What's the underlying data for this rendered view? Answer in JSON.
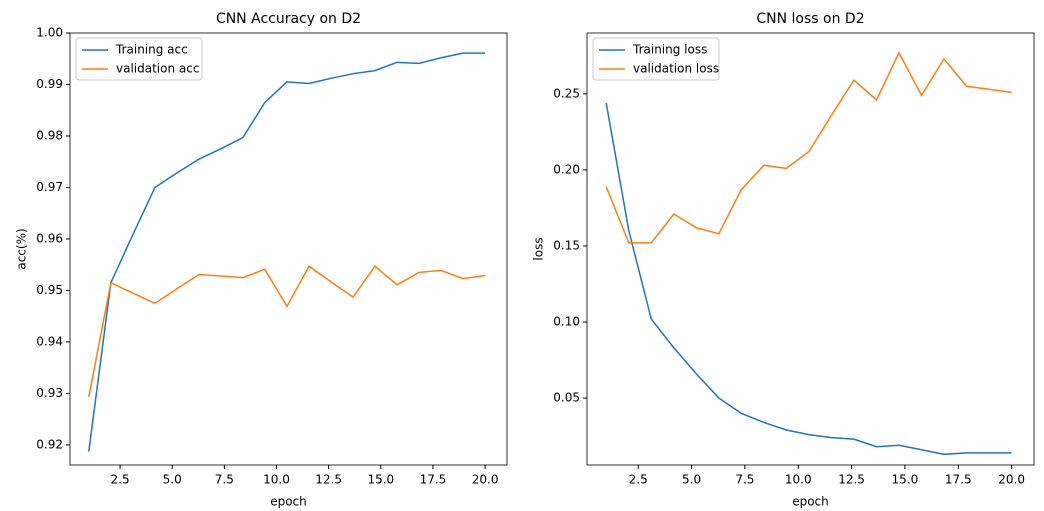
{
  "chart_data": [
    {
      "type": "line",
      "title": "CNN Accuracy on D2",
      "x_label": "epoch",
      "y_label": "acc(%)",
      "x": [
        1,
        2.06,
        3.11,
        4.17,
        5.22,
        6.28,
        7.33,
        8.39,
        9.44,
        10.5,
        11.56,
        12.61,
        13.67,
        14.72,
        15.78,
        16.83,
        17.89,
        18.94,
        20
      ],
      "series": [
        {
          "name": "Training acc",
          "color": "#1f77b4",
          "values": [
            0.9187,
            0.9515,
            0.9608,
            0.97,
            0.9728,
            0.9755,
            0.9775,
            0.9797,
            0.9865,
            0.9905,
            0.9902,
            0.9912,
            0.9921,
            0.9927,
            0.9943,
            0.9941,
            0.9952,
            0.9961,
            0.9961
          ]
        },
        {
          "name": "validation acc",
          "color": "#ff7f0e",
          "values": [
            0.9293,
            0.9515,
            0.9495,
            0.9475,
            0.9503,
            0.9531,
            0.9528,
            0.9525,
            0.9541,
            0.9469,
            0.9547,
            0.9517,
            0.9487,
            0.9547,
            0.9511,
            0.9535,
            0.9539,
            0.9523,
            0.9529
          ]
        }
      ],
      "xlim": [
        0.1,
        21.05
      ],
      "xticks": [
        {
          "value": 2.5,
          "label": "2.5"
        },
        {
          "value": 5,
          "label": "5.0"
        },
        {
          "value": 7.5,
          "label": "7.5"
        },
        {
          "value": 10,
          "label": "10.0"
        },
        {
          "value": 12.5,
          "label": "12.5"
        },
        {
          "value": 15,
          "label": "15.0"
        },
        {
          "value": 17.5,
          "label": "17.5"
        },
        {
          "value": 20,
          "label": "20.0"
        }
      ],
      "ylim": [
        0.9161,
        1.0
      ],
      "yticks": [
        {
          "value": 0.92,
          "label": "0.92"
        },
        {
          "value": 0.93,
          "label": "0.93"
        },
        {
          "value": 0.94,
          "label": "0.94"
        },
        {
          "value": 0.95,
          "label": "0.95"
        },
        {
          "value": 0.96,
          "label": "0.96"
        },
        {
          "value": 0.97,
          "label": "0.97"
        },
        {
          "value": 0.98,
          "label": "0.98"
        },
        {
          "value": 0.99,
          "label": "0.99"
        },
        {
          "value": 1.0,
          "label": "1.00"
        }
      ],
      "legend": "upper left"
    },
    {
      "type": "line",
      "title": "CNN loss on D2",
      "x_label": "epoch",
      "y_label": "loss",
      "x": [
        1,
        2.06,
        3.11,
        4.17,
        5.22,
        6.28,
        7.33,
        8.39,
        9.44,
        10.5,
        11.56,
        12.61,
        13.67,
        14.72,
        15.78,
        16.83,
        17.89,
        18.94,
        20
      ],
      "series": [
        {
          "name": "Training loss",
          "color": "#1f77b4",
          "values": [
            0.244,
            0.16,
            0.102,
            0.083,
            0.066,
            0.05,
            0.04,
            0.034,
            0.029,
            0.026,
            0.024,
            0.023,
            0.018,
            0.019,
            0.016,
            0.013,
            0.014,
            0.014,
            0.014
          ]
        },
        {
          "name": "validation loss",
          "color": "#ff7f0e",
          "values": [
            0.189,
            0.152,
            0.152,
            0.171,
            0.162,
            0.158,
            0.187,
            0.203,
            0.201,
            0.212,
            0.236,
            0.259,
            0.246,
            0.277,
            0.249,
            0.273,
            0.255,
            0.253,
            0.251
          ]
        }
      ],
      "xlim": [
        0.1,
        21.05
      ],
      "xticks": [
        {
          "value": 2.5,
          "label": "2.5"
        },
        {
          "value": 5,
          "label": "5.0"
        },
        {
          "value": 7.5,
          "label": "7.5"
        },
        {
          "value": 10,
          "label": "10.0"
        },
        {
          "value": 12.5,
          "label": "12.5"
        },
        {
          "value": 15,
          "label": "15.0"
        },
        {
          "value": 17.5,
          "label": "17.5"
        },
        {
          "value": 20,
          "label": "20.0"
        }
      ],
      "ylim": [
        0.006,
        0.29
      ],
      "yticks": [
        {
          "value": 0.05,
          "label": "0.05"
        },
        {
          "value": 0.1,
          "label": "0.10"
        },
        {
          "value": 0.15,
          "label": "0.15"
        },
        {
          "value": 0.2,
          "label": "0.20"
        },
        {
          "value": 0.25,
          "label": "0.25"
        }
      ],
      "legend": "upper left"
    }
  ]
}
